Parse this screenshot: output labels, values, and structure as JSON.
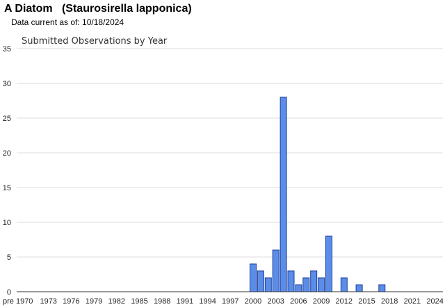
{
  "header": {
    "title": "A Diatom   (Staurosirella lapponica)",
    "data_current": "Data current as of: 10/18/2024"
  },
  "colors": {
    "bar_fill": "#5b8de8",
    "bar_stroke": "#1b3f9a",
    "grid": "#dddddd"
  },
  "chart_data": {
    "type": "bar",
    "title": "Submitted Observations by Year",
    "xlabel": "",
    "ylabel": "",
    "ylim": [
      0,
      35
    ],
    "y_ticks": [
      0,
      5,
      10,
      15,
      20,
      25,
      30,
      35
    ],
    "x_tick_labels": [
      "pre 1970",
      "1973",
      "1976",
      "1979",
      "1982",
      "1985",
      "1988",
      "1991",
      "1994",
      "1997",
      "2000",
      "2003",
      "2006",
      "2009",
      "2012",
      "2015",
      "2018",
      "2021",
      "2024"
    ],
    "grid": true,
    "legend": "none",
    "categories": [
      "pre 1970",
      "1971",
      "1972",
      "1973",
      "1974",
      "1975",
      "1976",
      "1977",
      "1978",
      "1979",
      "1980",
      "1981",
      "1982",
      "1983",
      "1984",
      "1985",
      "1986",
      "1987",
      "1988",
      "1989",
      "1990",
      "1991",
      "1992",
      "1993",
      "1994",
      "1995",
      "1996",
      "1997",
      "1998",
      "1999",
      "2000",
      "2001",
      "2002",
      "2003",
      "2004",
      "2005",
      "2006",
      "2007",
      "2008",
      "2009",
      "2010",
      "2011",
      "2012",
      "2013",
      "2014",
      "2015",
      "2016",
      "2017",
      "2018",
      "2019",
      "2020",
      "2021",
      "2022",
      "2023",
      "2024"
    ],
    "values": [
      0,
      0,
      0,
      0,
      0,
      0,
      0,
      0,
      0,
      0,
      0,
      0,
      0,
      0,
      0,
      0,
      0,
      0,
      0,
      0,
      0,
      0,
      0,
      0,
      0,
      0,
      0,
      0,
      0,
      0,
      4,
      3,
      2,
      6,
      28,
      3,
      1,
      2,
      3,
      2,
      8,
      0,
      2,
      0,
      1,
      0,
      0,
      1,
      0,
      0,
      0,
      0,
      0,
      0,
      0
    ]
  }
}
